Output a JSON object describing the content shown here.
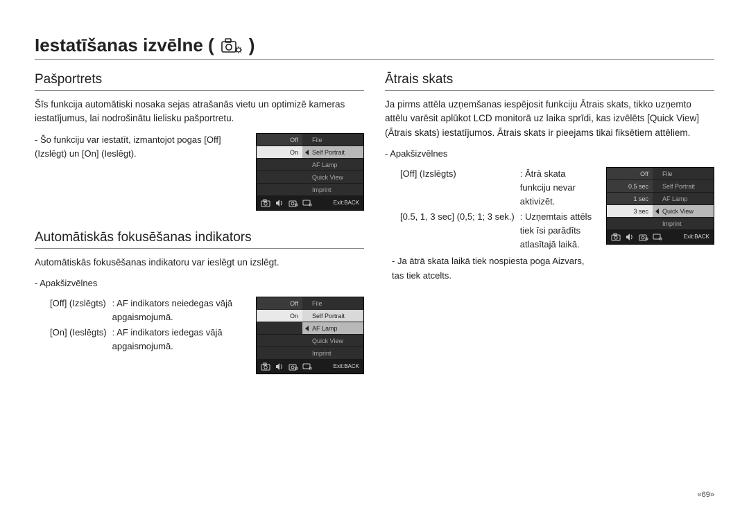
{
  "page": {
    "title": "Iestatīšanas izvēlne (",
    "title_suffix": ")",
    "page_number": "«69»"
  },
  "left": {
    "s1": {
      "title": "Pašportrets",
      "body": "Šīs funkcija automātiski nosaka sejas atrašanās vietu un optimizē kameras iestatījumus, lai nodrošinātu lielisku pašportretu.",
      "bullet": "- Šo funkciju var iestatīt, izmantojot pogas [Off] (Izslēgt) un [On] (Ieslēgt).",
      "menu": {
        "left": [
          "Off",
          "On",
          "",
          "",
          ""
        ],
        "right": [
          "File",
          "Self Portrait",
          "AF Lamp",
          "Quick View",
          "Imprint"
        ],
        "selected_left_index": 1,
        "highlight_right_index": 1,
        "footer": "Exit:BACK"
      }
    },
    "s2": {
      "title": "Automātiskās fokusēšanas indikators",
      "body": "Automātiskās fokusēšanas indikatoru var ieslēgt un izslēgt.",
      "sub_label": "- Apakšizvēlnes",
      "defs": [
        {
          "t": "[Off] (Izslēgts)",
          "d": "AF indikators neiedegas vājā apgaismojumā."
        },
        {
          "t": "[On] (Ieslēgts)",
          "d": "AF indikators iedegas vājā apgaismojumā."
        }
      ],
      "menu": {
        "left": [
          "Off",
          "On",
          "",
          "",
          ""
        ],
        "right": [
          "File",
          "Self Portrait",
          "AF Lamp",
          "Quick View",
          "Imprint"
        ],
        "selected_left_index": 1,
        "highlight_right_index": 2,
        "footer": "Exit:BACK"
      }
    }
  },
  "right": {
    "s1": {
      "title": "Ātrais skats",
      "body": "Ja pirms attēla uzņemšanas iespējosit funkciju Ātrais skats, tikko uzņemto attēlu varēsit aplūkot LCD monitorā uz laika sprīdi, kas izvēlēts [Quick View] (Ātrais skats) iestatījumos. Ātrais skats ir pieejams tikai fiksētiem attēliem.",
      "sub_label": "- Apakšizvēlnes",
      "defs": [
        {
          "t": "[Off] (Izslēgts)",
          "d": "Ātrā skata funkciju nevar aktivizēt."
        },
        {
          "t": "[0.5, 1, 3 sec] (0,5; 1; 3 sek.)",
          "d": "Uzņemtais attēls tiek īsi parādīts atlasītajā laikā."
        }
      ],
      "note": "- Ja ātrā skata laikā tiek nospiesta poga Aizvars, tas tiek atcelts.",
      "menu": {
        "left": [
          "Off",
          "0.5 sec",
          "1 sec",
          "3 sec",
          ""
        ],
        "right": [
          "File",
          "Self Portrait",
          "AF Lamp",
          "Quick View",
          "Imprint"
        ],
        "selected_left_index": 3,
        "highlight_right_index": 3,
        "footer": "Exit:BACK"
      }
    }
  },
  "colors": {
    "text": "#222222",
    "rule": "#888888",
    "menu_bg": "#2b2b2b",
    "menu_row": "#3b3b3b",
    "menu_row_dark": "#2e2e2e",
    "menu_sel": "#e9e9e9",
    "menu_selB": "#d9d9d9",
    "menu_hlB": "#b8b8b8",
    "menu_footer": "#1b1b1b"
  }
}
